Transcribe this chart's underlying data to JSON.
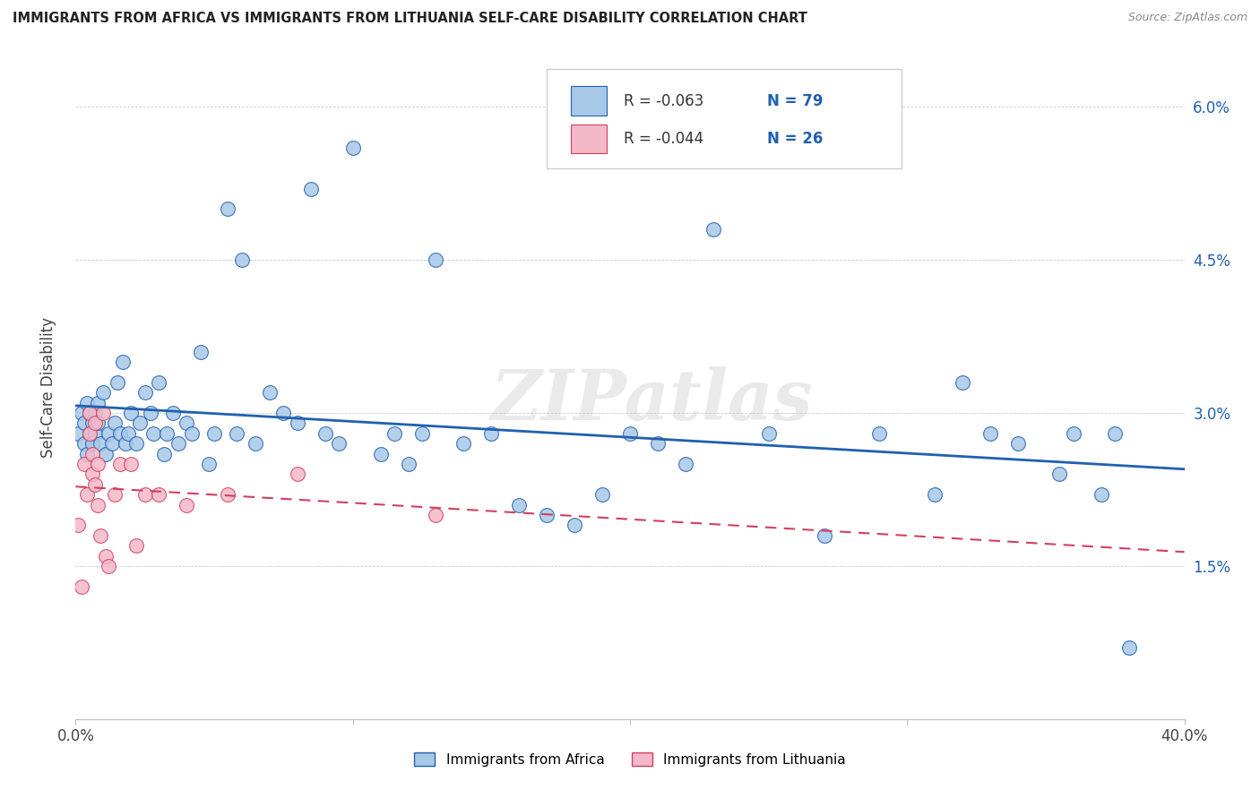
{
  "title": "IMMIGRANTS FROM AFRICA VS IMMIGRANTS FROM LITHUANIA SELF-CARE DISABILITY CORRELATION CHART",
  "source": "Source: ZipAtlas.com",
  "ylabel": "Self-Care Disability",
  "xlim": [
    0.0,
    0.4
  ],
  "ylim": [
    0.0,
    0.065
  ],
  "xticks": [
    0.0,
    0.1,
    0.2,
    0.3,
    0.4
  ],
  "xticklabels": [
    "0.0%",
    "",
    "",
    "",
    "40.0%"
  ],
  "yticks": [
    0.0,
    0.015,
    0.03,
    0.045,
    0.06
  ],
  "yticklabels": [
    "",
    "1.5%",
    "3.0%",
    "4.5%",
    "6.0%"
  ],
  "legend_r_africa": "-0.063",
  "legend_n_africa": "79",
  "legend_r_lithuania": "-0.044",
  "legend_n_lithuania": "26",
  "color_africa": "#a8c8e8",
  "color_lithuania": "#f4b8c8",
  "line_color_africa": "#2060b0",
  "line_color_lithuania": "#d04060",
  "watermark": "ZIPatlas",
  "africa_x": [
    0.001,
    0.002,
    0.003,
    0.003,
    0.004,
    0.004,
    0.005,
    0.005,
    0.006,
    0.006,
    0.007,
    0.007,
    0.008,
    0.008,
    0.009,
    0.01,
    0.011,
    0.012,
    0.013,
    0.014,
    0.015,
    0.016,
    0.017,
    0.018,
    0.019,
    0.02,
    0.022,
    0.023,
    0.025,
    0.027,
    0.028,
    0.03,
    0.032,
    0.033,
    0.035,
    0.037,
    0.04,
    0.042,
    0.045,
    0.048,
    0.05,
    0.055,
    0.058,
    0.06,
    0.065,
    0.07,
    0.075,
    0.08,
    0.085,
    0.09,
    0.095,
    0.1,
    0.11,
    0.115,
    0.12,
    0.125,
    0.13,
    0.14,
    0.15,
    0.16,
    0.17,
    0.18,
    0.19,
    0.2,
    0.21,
    0.22,
    0.23,
    0.25,
    0.27,
    0.29,
    0.31,
    0.32,
    0.33,
    0.34,
    0.355,
    0.36,
    0.37,
    0.375,
    0.38
  ],
  "africa_y": [
    0.028,
    0.03,
    0.027,
    0.029,
    0.031,
    0.026,
    0.03,
    0.028,
    0.029,
    0.027,
    0.03,
    0.028,
    0.029,
    0.031,
    0.027,
    0.032,
    0.026,
    0.028,
    0.027,
    0.029,
    0.033,
    0.028,
    0.035,
    0.027,
    0.028,
    0.03,
    0.027,
    0.029,
    0.032,
    0.03,
    0.028,
    0.033,
    0.026,
    0.028,
    0.03,
    0.027,
    0.029,
    0.028,
    0.036,
    0.025,
    0.028,
    0.05,
    0.028,
    0.045,
    0.027,
    0.032,
    0.03,
    0.029,
    0.052,
    0.028,
    0.027,
    0.056,
    0.026,
    0.028,
    0.025,
    0.028,
    0.045,
    0.027,
    0.028,
    0.021,
    0.02,
    0.019,
    0.022,
    0.028,
    0.027,
    0.025,
    0.048,
    0.028,
    0.018,
    0.028,
    0.022,
    0.033,
    0.028,
    0.027,
    0.024,
    0.028,
    0.022,
    0.028,
    0.007
  ],
  "lithuania_x": [
    0.001,
    0.002,
    0.003,
    0.004,
    0.005,
    0.005,
    0.006,
    0.006,
    0.007,
    0.007,
    0.008,
    0.008,
    0.009,
    0.01,
    0.011,
    0.012,
    0.014,
    0.016,
    0.02,
    0.022,
    0.025,
    0.03,
    0.04,
    0.055,
    0.08,
    0.13
  ],
  "lithuania_y": [
    0.019,
    0.013,
    0.025,
    0.022,
    0.03,
    0.028,
    0.024,
    0.026,
    0.029,
    0.023,
    0.025,
    0.021,
    0.018,
    0.03,
    0.016,
    0.015,
    0.022,
    0.025,
    0.025,
    0.017,
    0.022,
    0.022,
    0.021,
    0.022,
    0.024,
    0.02
  ]
}
